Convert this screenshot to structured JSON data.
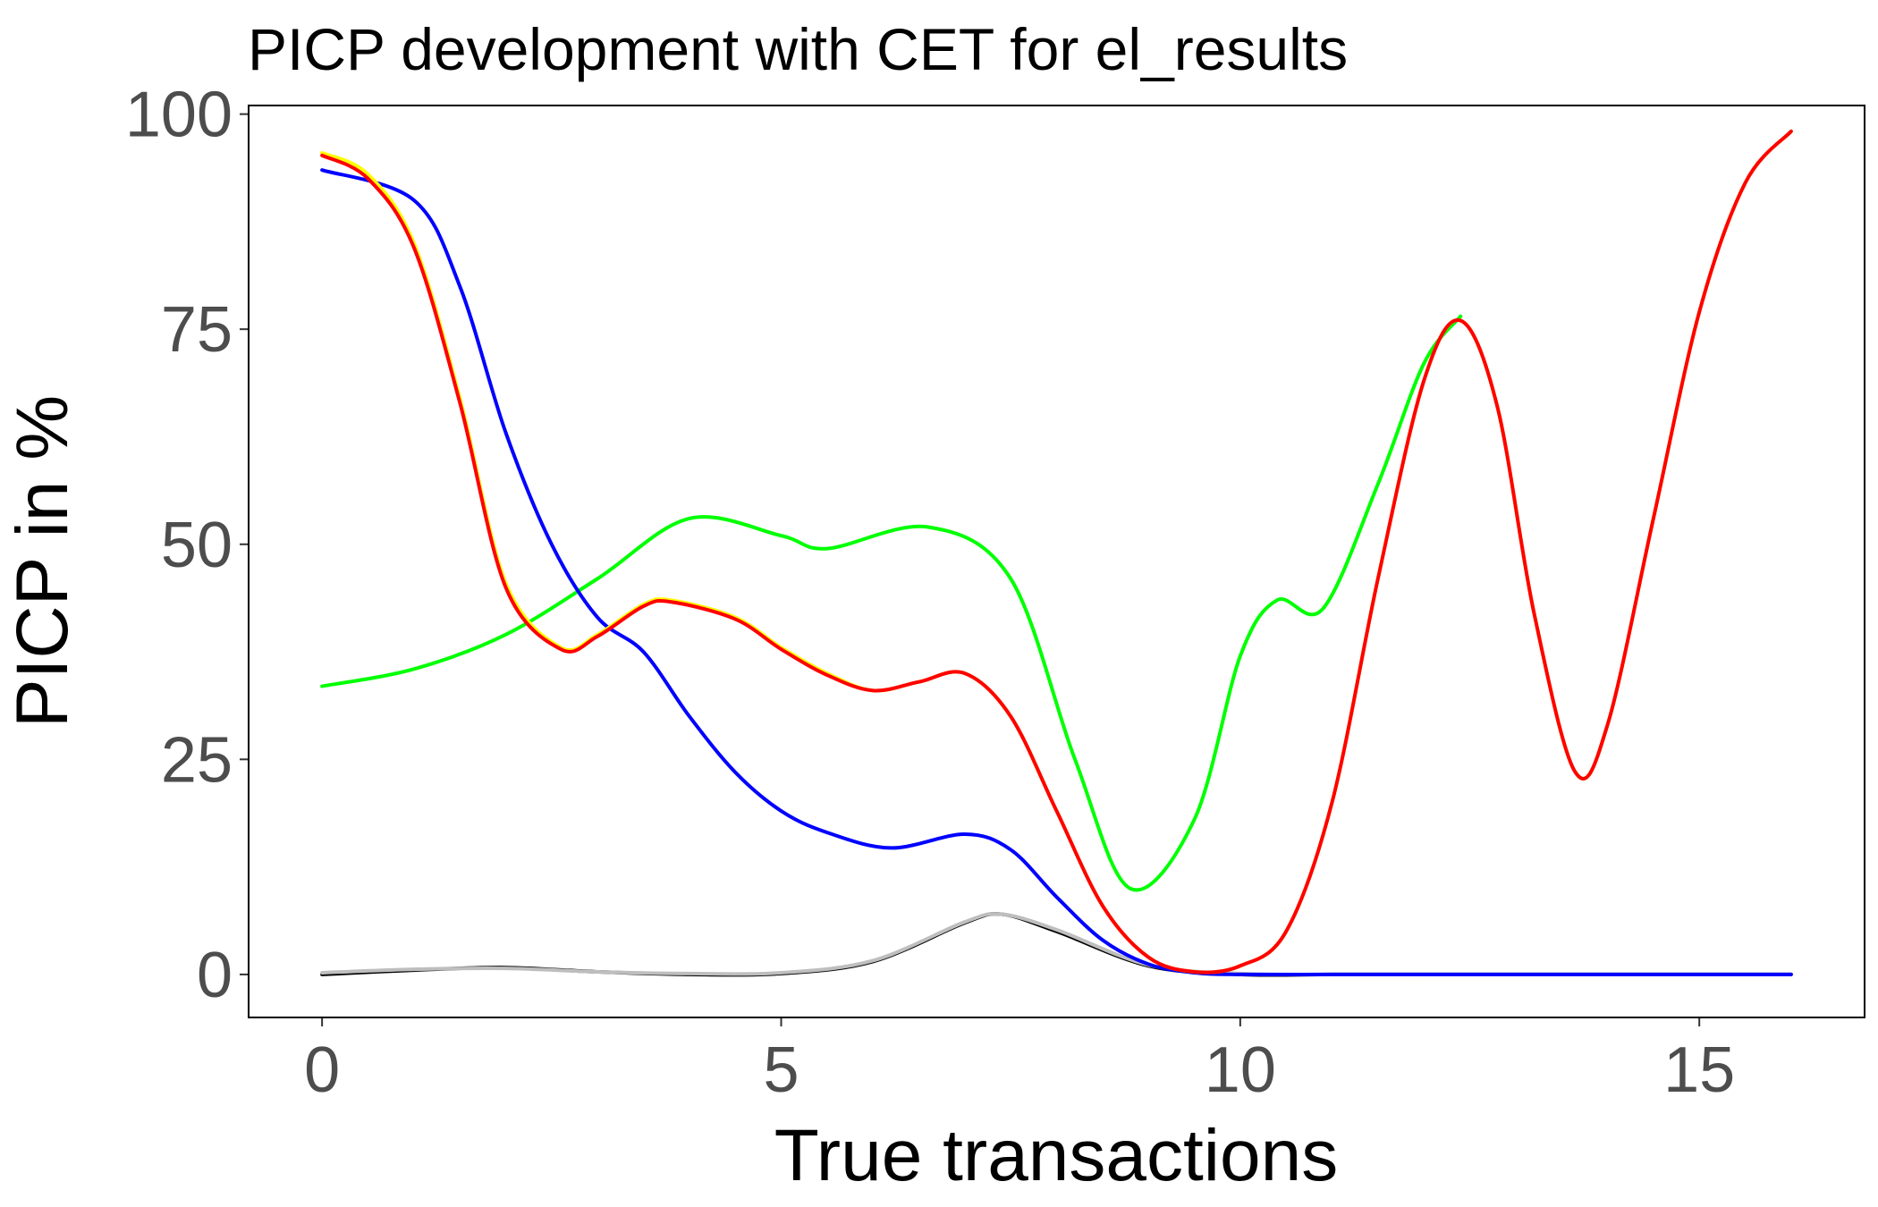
{
  "chart_data": {
    "type": "line",
    "title": "PICP development with CET for el_results",
    "xlabel": "True transactions",
    "ylabel": "PICP in %",
    "xlim": [
      -0.8,
      16.8
    ],
    "ylim": [
      -5,
      101
    ],
    "x_ticks": [
      0,
      5,
      10,
      15
    ],
    "y_ticks": [
      0,
      25,
      50,
      75,
      100
    ],
    "grid": false,
    "legend": "none",
    "series": [
      {
        "color": "#000000",
        "x": [
          0,
          1,
          2,
          3,
          4,
          5,
          6,
          7,
          7.4,
          8,
          9,
          10,
          11,
          12,
          13,
          14,
          15,
          16
        ],
        "y": [
          0.0,
          0.5,
          0.8,
          0.3,
          0.0,
          0.1,
          1.5,
          6.0,
          7.0,
          5.0,
          1.0,
          0.0,
          0.0,
          0.0,
          0.0,
          0.0,
          0.0,
          0.0
        ]
      },
      {
        "color": "#bebebe",
        "x": [
          0,
          1,
          2,
          3,
          4,
          5,
          6,
          7,
          7.4,
          8,
          9,
          10,
          11,
          12,
          13,
          14,
          15,
          16
        ],
        "y": [
          0.2,
          0.6,
          0.7,
          0.3,
          0.1,
          0.2,
          1.6,
          6.1,
          7.0,
          5.2,
          1.1,
          0.1,
          0.0,
          0.0,
          0.0,
          0.0,
          0.0,
          0.0
        ]
      },
      {
        "color": "#00ff00",
        "x": [
          0,
          1,
          2,
          3,
          4,
          5,
          5.5,
          6.6,
          7.5,
          8.2,
          8.8,
          9.5,
          10.0,
          10.4,
          10.9,
          11.5,
          12.0,
          12.4
        ],
        "y": [
          33.5,
          35.5,
          39.5,
          46.0,
          53.0,
          51.0,
          49.5,
          52.0,
          46.0,
          25.0,
          10.0,
          18.0,
          37.0,
          43.5,
          42.5,
          57.0,
          71.0,
          76.5
        ]
      },
      {
        "color": "#0000ff",
        "x": [
          0,
          1,
          1.5,
          2,
          2.5,
          3,
          3.5,
          4,
          4.5,
          5,
          5.5,
          6.2,
          7.0,
          7.5,
          8.0,
          8.5,
          9.0,
          9.5,
          10.0,
          11,
          12,
          13,
          14,
          15,
          16
        ],
        "y": [
          93.5,
          90.0,
          80.0,
          63.0,
          50.0,
          41.5,
          37.5,
          30.0,
          23.5,
          19.0,
          16.5,
          14.7,
          16.3,
          14.5,
          9.0,
          4.0,
          1.2,
          0.2,
          0.0,
          0.0,
          0.0,
          0.0,
          0.0,
          0.0,
          0.0
        ]
      },
      {
        "color": "#ffff00",
        "x": [
          0,
          0.5,
          1.0,
          1.5,
          2.0,
          2.6,
          3.0,
          3.5,
          3.8,
          4.5,
          5.0,
          5.5,
          6.0,
          6.5,
          7.0,
          7.5,
          8.0,
          8.5,
          9.0,
          9.5,
          10.0,
          10.5,
          11.0,
          11.5,
          12.0,
          12.4,
          12.8,
          13.2,
          13.65,
          14.0,
          14.5,
          15.0,
          15.5,
          16.0
        ],
        "y": [
          95.5,
          93.0,
          85.0,
          67.0,
          45.5,
          38.0,
          39.5,
          43.0,
          43.5,
          41.5,
          38.0,
          35.0,
          33.0,
          34.0,
          35.0,
          30.0,
          19.0,
          8.0,
          2.0,
          0.3,
          1.0,
          5.0,
          20.0,
          46.0,
          69.0,
          76.0,
          66.0,
          42.0,
          23.5,
          29.0,
          53.0,
          77.0,
          92.0,
          98.0
        ]
      },
      {
        "color": "#ff0000",
        "x": [
          0,
          0.5,
          1.0,
          1.5,
          2.0,
          2.6,
          3.0,
          3.5,
          3.8,
          4.5,
          5.0,
          5.5,
          6.0,
          6.5,
          7.0,
          7.5,
          8.0,
          8.5,
          9.0,
          9.5,
          10.0,
          10.5,
          11.0,
          11.5,
          12.0,
          12.4,
          12.8,
          13.2,
          13.65,
          14.0,
          14.5,
          15.0,
          15.5,
          16.0
        ],
        "y": [
          95.2,
          92.5,
          84.5,
          66.5,
          45.0,
          37.8,
          39.3,
          42.8,
          43.3,
          41.3,
          37.8,
          34.8,
          33.0,
          34.0,
          35.0,
          30.0,
          19.0,
          8.0,
          2.0,
          0.3,
          1.0,
          5.0,
          20.0,
          46.0,
          69.0,
          76.0,
          66.0,
          42.0,
          23.5,
          29.0,
          53.0,
          77.0,
          92.0,
          98.0
        ]
      }
    ]
  }
}
